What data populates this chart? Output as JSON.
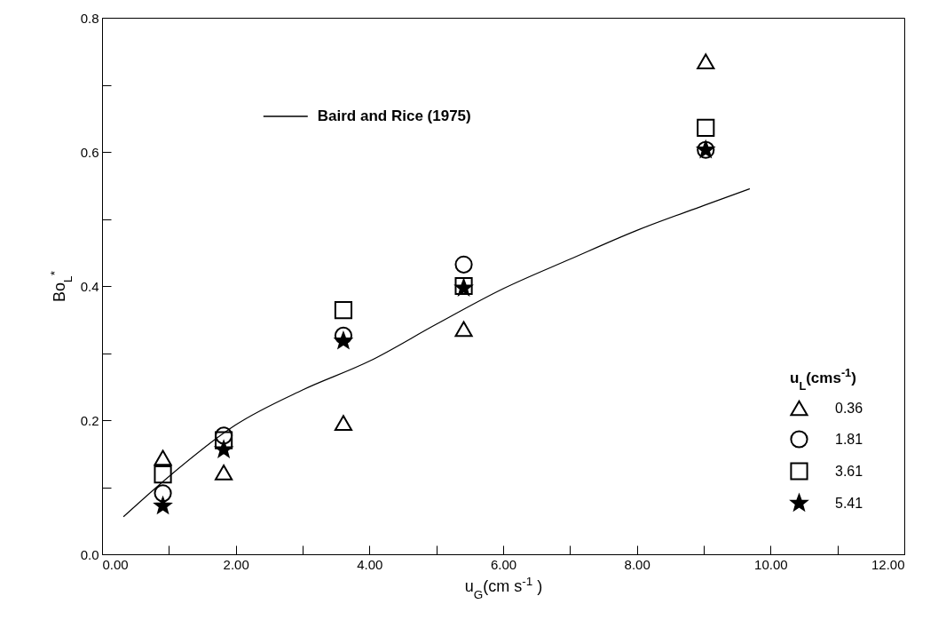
{
  "chart_data": {
    "type": "scatter",
    "xlabel": "u$_{G}$(cm s$^{-1}$ )",
    "ylabel": "Bo$_{L}$$^{*}$",
    "legend_title": "u$_{L}$(cms$^{-1}$)",
    "xlim": [
      0,
      12
    ],
    "ylim": [
      0,
      0.8
    ],
    "xticks": [
      {
        "value": 0,
        "label": "0.00"
      },
      {
        "value": 1,
        "label": null
      },
      {
        "value": 2,
        "label": "2.00"
      },
      {
        "value": 3,
        "label": null
      },
      {
        "value": 4,
        "label": "4.00"
      },
      {
        "value": 5,
        "label": null
      },
      {
        "value": 6,
        "label": "6.00"
      },
      {
        "value": 7,
        "label": null
      },
      {
        "value": 8,
        "label": "8.00"
      },
      {
        "value": 9,
        "label": null
      },
      {
        "value": 10,
        "label": "10.00"
      },
      {
        "value": 11,
        "label": null
      },
      {
        "value": 12,
        "label": "12.00"
      }
    ],
    "yticks": [
      {
        "value": 0,
        "label": "0.0"
      },
      {
        "value": 0.1,
        "label": null
      },
      {
        "value": 0.2,
        "label": "0.2"
      },
      {
        "value": 0.3,
        "label": null
      },
      {
        "value": 0.4,
        "label": "0.4"
      },
      {
        "value": 0.5,
        "label": null
      },
      {
        "value": 0.6,
        "label": "0.6"
      },
      {
        "value": 0.7,
        "label": null
      },
      {
        "value": 0.8,
        "label": "0.8"
      }
    ],
    "grid": false,
    "legend": "bottom right",
    "x": [
      0.91,
      1.82,
      3.61,
      5.41,
      9.03
    ],
    "series": [
      {
        "name": "0.36",
        "color": "#000000",
        "marker": "triangle",
        "values": [
          0.144,
          0.122,
          0.196,
          0.336,
          0.735
        ]
      },
      {
        "name": "1.81",
        "color": "#000000",
        "marker": "circle",
        "values": [
          0.091,
          0.177,
          0.326,
          0.432,
          0.603
        ]
      },
      {
        "name": "3.61",
        "color": "#000000",
        "marker": "square",
        "values": [
          0.119,
          0.17,
          0.364,
          0.4,
          0.636
        ]
      },
      {
        "name": "5.41",
        "color": "#000000",
        "marker": "star",
        "values": [
          0.072,
          0.156,
          0.318,
          0.397,
          0.603
        ]
      },
      {
        "name": "Baird and Rice (1975)",
        "type": "line",
        "color": "#000000",
        "marker": "none",
        "line_style": "solid",
        "x": [
          0.32,
          1,
          2,
          3,
          4,
          5,
          6,
          7,
          8,
          9,
          9.69
        ],
        "values": [
          0.056,
          0.116,
          0.193,
          0.245,
          0.288,
          0.343,
          0.396,
          0.44,
          0.483,
          0.52,
          0.545
        ]
      }
    ]
  }
}
